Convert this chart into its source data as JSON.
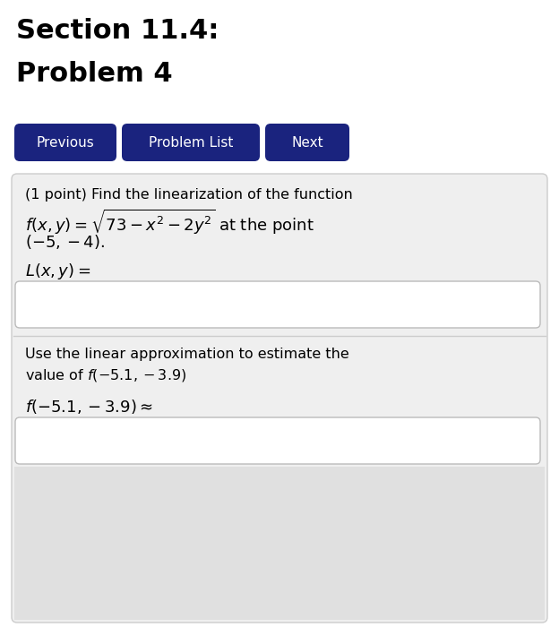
{
  "title_line1": "Section 11.4:",
  "title_line2": "Problem 4",
  "title_fontsize": 22,
  "title_fontweight": "bold",
  "title_color": "#000000",
  "background_color": "#ffffff",
  "button_color": "#1a237e",
  "button_text_color": "#ffffff",
  "button_labels": [
    "Previous",
    "Problem List",
    "Next"
  ],
  "button_fontsize": 11,
  "problem_box_color": "#efefef",
  "problem_box_border": "#cccccc",
  "input_box_color": "#ffffff",
  "input_box_border": "#bbbbbb",
  "point_text": "(1 point) Find the linearization of the function",
  "function_line1": "$f(x, y) = \\sqrt{73 - x^2 - 2y^2}$ at the point",
  "function_line2": "$(-5, -4).$",
  "Lxy_label": "$L(x, y) =$",
  "use_linear_text1": "Use the linear approximation to estimate the",
  "use_linear_text2": "value of $f(-5.1, -3.9)$",
  "approx_label": "$f(-5.1, -3.9) \\approx$",
  "body_fontsize": 11.5,
  "math_fontsize": 13
}
